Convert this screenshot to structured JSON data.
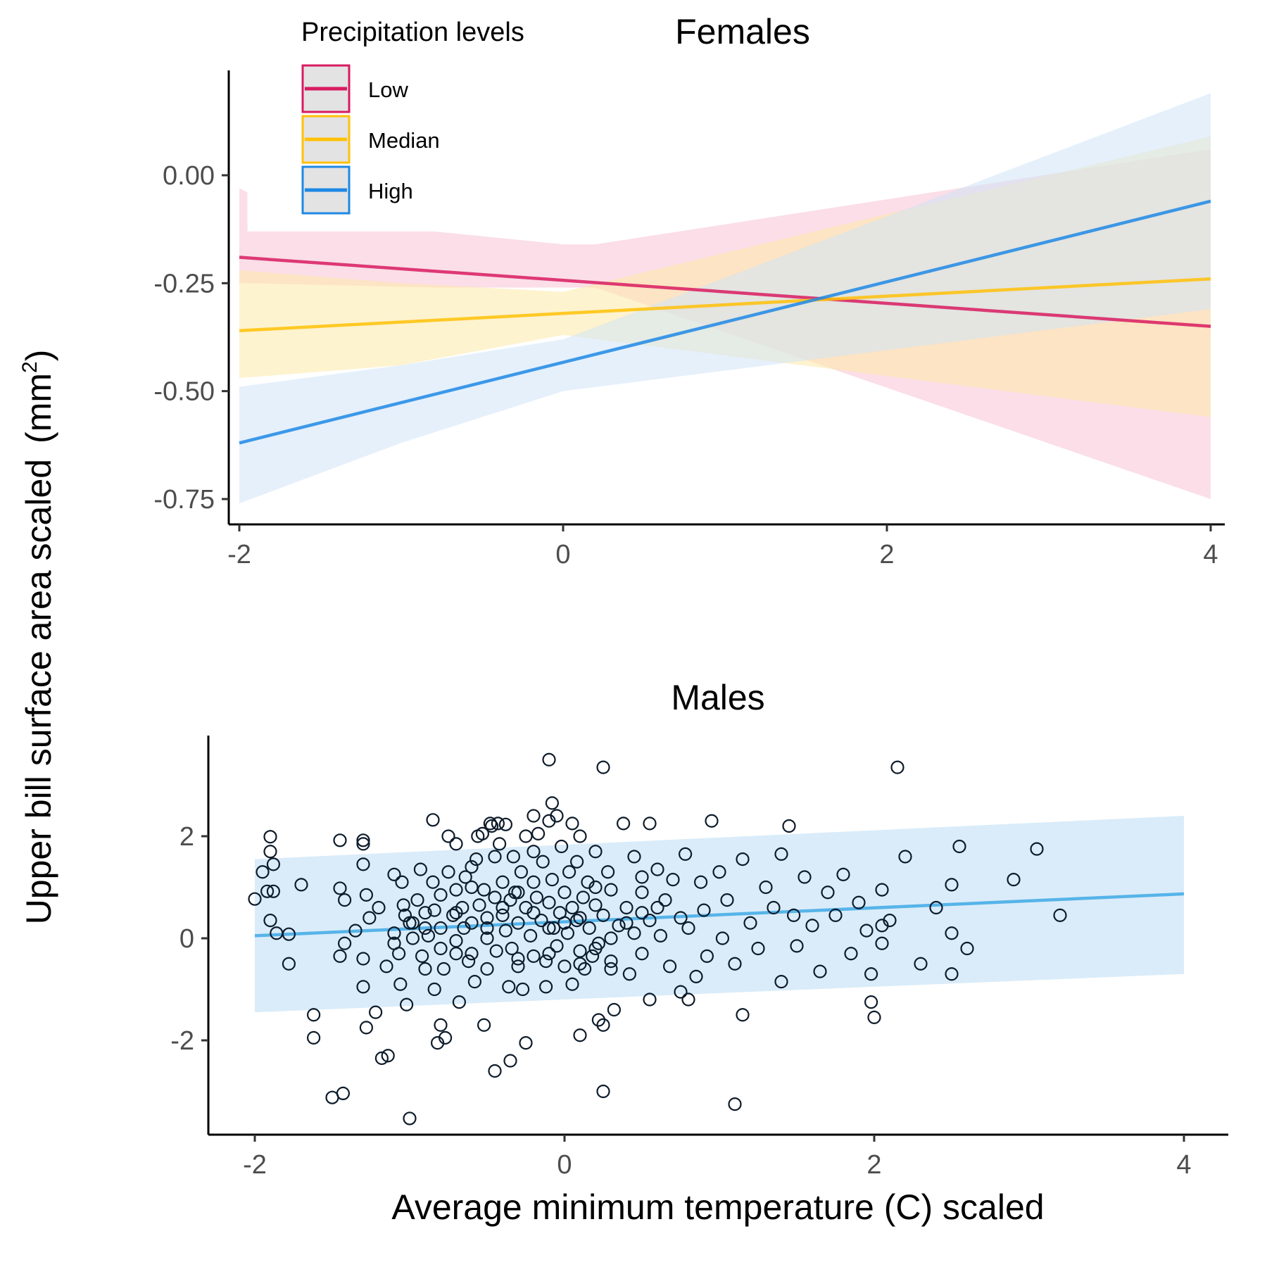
{
  "chart_data": [
    {
      "type": "line",
      "title": "Females",
      "x_range": [
        -2.3,
        4.4
      ],
      "ylim": [
        -0.81,
        0.24
      ],
      "x_ticks": [
        -2,
        0,
        2,
        4
      ],
      "y_ticks": [
        0.0,
        -0.25,
        -0.5,
        -0.75
      ],
      "x_tick_labels": [
        "-2",
        "0",
        "2",
        "4"
      ],
      "y_tick_labels": [
        "0.00",
        "-0.25",
        "-0.50",
        "-0.75"
      ],
      "grid": false,
      "legend": {
        "title": "Precipitation levels",
        "placement": "top-left",
        "entries": [
          "Low",
          "Median",
          "High"
        ]
      },
      "series": [
        {
          "name": "Low",
          "color": "#d81b60",
          "x": [
            -2,
            4
          ],
          "y": [
            -0.19,
            -0.35
          ],
          "ribbon": {
            "x": [
              -2,
              -2,
              -1.95,
              -1.95,
              -0.8,
              0,
              0.2,
              4
            ],
            "upper": [
              -0.03,
              -0.03,
              -0.04,
              -0.13,
              -0.13,
              -0.16,
              -0.16,
              0.06
            ],
            "lower": [
              -0.25,
              -0.25,
              -0.25,
              -0.25,
              -0.26,
              -0.26,
              -0.26,
              -0.75
            ],
            "color": "#f7c3d4"
          }
        },
        {
          "name": "Median",
          "color": "#ffc107",
          "x": [
            -2,
            4
          ],
          "y": [
            -0.36,
            -0.24
          ],
          "ribbon": {
            "x": [
              -2,
              -1,
              0,
              4
            ],
            "upper": [
              -0.22,
              -0.25,
              -0.27,
              0.09
            ],
            "lower": [
              -0.47,
              -0.44,
              -0.37,
              -0.56
            ],
            "color": "#fde9a8"
          }
        },
        {
          "name": "High",
          "color": "#1e88e5",
          "x": [
            -2,
            4
          ],
          "y": [
            -0.62,
            -0.06
          ],
          "ribbon": {
            "x": [
              -2,
              -1,
              0,
              4
            ],
            "upper": [
              -0.49,
              -0.44,
              -0.38,
              0.19
            ],
            "lower": [
              -0.76,
              -0.62,
              -0.5,
              -0.31
            ],
            "color": "#cfe3f7"
          }
        }
      ]
    },
    {
      "type": "scatter",
      "title": "Males",
      "x_range": [
        -2.3,
        4.3
      ],
      "ylim": [
        -3.9,
        3.9
      ],
      "x_ticks": [
        -2,
        0,
        2,
        4
      ],
      "y_ticks": [
        2,
        0,
        -2
      ],
      "x_tick_labels": [
        "-2",
        "0",
        "2",
        "4"
      ],
      "y_tick_labels": [
        "2",
        "0",
        "-2"
      ],
      "grid": false,
      "fit_line": {
        "x": [
          -2,
          4
        ],
        "y": [
          0.05,
          0.87
        ],
        "color": "#56b4e9"
      },
      "ribbon": {
        "x": [
          -2,
          4
        ],
        "upper": [
          1.55,
          2.4
        ],
        "lower": [
          -1.45,
          -0.7
        ],
        "color": "#d4e9f8"
      },
      "points": [
        [
          -1.9,
          1.99
        ],
        [
          -1.9,
          1.7
        ],
        [
          -1.88,
          1.45
        ],
        [
          -1.92,
          0.92
        ],
        [
          -1.88,
          0.92
        ],
        [
          -1.9,
          0.35
        ],
        [
          -1.95,
          1.3
        ],
        [
          -1.86,
          0.1
        ],
        [
          -1.78,
          0.08
        ],
        [
          -1.78,
          -0.5
        ],
        [
          -2.0,
          0.77
        ],
        [
          -1.7,
          1.05
        ],
        [
          -1.62,
          -1.5
        ],
        [
          -1.62,
          -1.95
        ],
        [
          -1.5,
          -3.12
        ],
        [
          -1.43,
          -3.04
        ],
        [
          -1.45,
          1.92
        ],
        [
          -1.45,
          0.98
        ],
        [
          -1.42,
          0.75
        ],
        [
          -1.45,
          -0.35
        ],
        [
          -1.42,
          -0.1
        ],
        [
          -1.35,
          0.15
        ],
        [
          -1.3,
          1.92
        ],
        [
          -1.3,
          1.85
        ],
        [
          -1.3,
          1.45
        ],
        [
          -1.28,
          0.85
        ],
        [
          -1.26,
          0.4
        ],
        [
          -1.3,
          -0.95
        ],
        [
          -1.28,
          -1.75
        ],
        [
          -1.22,
          -1.45
        ],
        [
          -1.18,
          -2.35
        ],
        [
          -1.14,
          -2.3
        ],
        [
          -1.15,
          -0.55
        ],
        [
          -1.1,
          0.1
        ],
        [
          -1.07,
          -0.3
        ],
        [
          -1.06,
          -0.9
        ],
        [
          -1.1,
          1.25
        ],
        [
          -1.05,
          1.1
        ],
        [
          -1.04,
          0.65
        ],
        [
          -1.03,
          0.45
        ],
        [
          -1.02,
          -1.3
        ],
        [
          -1.0,
          -3.53
        ],
        [
          -0.98,
          0.3
        ],
        [
          -0.98,
          0.0
        ],
        [
          -0.95,
          0.75
        ],
        [
          -0.93,
          1.35
        ],
        [
          -0.92,
          -0.35
        ],
        [
          -0.9,
          0.5
        ],
        [
          -0.88,
          0.05
        ],
        [
          -0.85,
          2.32
        ],
        [
          -0.85,
          1.1
        ],
        [
          -0.84,
          0.55
        ],
        [
          -0.84,
          -1.0
        ],
        [
          -0.82,
          -2.05
        ],
        [
          -0.8,
          0.85
        ],
        [
          -0.8,
          0.2
        ],
        [
          -0.78,
          -0.6
        ],
        [
          -0.77,
          -1.95
        ],
        [
          -0.75,
          2.0
        ],
        [
          -0.75,
          1.3
        ],
        [
          -0.72,
          0.45
        ],
        [
          -0.7,
          1.85
        ],
        [
          -0.7,
          0.95
        ],
        [
          -0.7,
          -0.05
        ],
        [
          -0.68,
          -1.25
        ],
        [
          -0.66,
          0.6
        ],
        [
          -0.65,
          0.2
        ],
        [
          -0.64,
          1.2
        ],
        [
          -0.62,
          -0.45
        ],
        [
          -0.6,
          1.0
        ],
        [
          -0.6,
          0.3
        ],
        [
          -0.58,
          -0.85
        ],
        [
          -0.57,
          1.55
        ],
        [
          -0.56,
          2.0
        ],
        [
          -0.55,
          0.65
        ],
        [
          -0.53,
          2.05
        ],
        [
          -0.52,
          0.95
        ],
        [
          -0.52,
          -1.7
        ],
        [
          -0.5,
          0.0
        ],
        [
          -0.5,
          0.4
        ],
        [
          -0.48,
          2.25
        ],
        [
          -0.47,
          2.2
        ],
        [
          -0.45,
          1.6
        ],
        [
          -0.45,
          0.8
        ],
        [
          -0.44,
          -0.25
        ],
        [
          -0.43,
          2.25
        ],
        [
          -0.42,
          1.85
        ],
        [
          -0.4,
          1.1
        ],
        [
          -0.4,
          0.45
        ],
        [
          -0.38,
          2.23
        ],
        [
          -0.38,
          0.15
        ],
        [
          -0.36,
          -0.95
        ],
        [
          -0.35,
          0.75
        ],
        [
          -0.34,
          -0.2
        ],
        [
          -0.33,
          1.6
        ],
        [
          -0.32,
          0.9
        ],
        [
          -0.3,
          0.3
        ],
        [
          -0.3,
          -0.55
        ],
        [
          -0.28,
          1.3
        ],
        [
          -0.27,
          -1.0
        ],
        [
          -0.25,
          0.6
        ],
        [
          -0.25,
          2.0
        ],
        [
          -0.22,
          0.05
        ],
        [
          -0.2,
          1.1
        ],
        [
          -0.2,
          -0.35
        ],
        [
          -0.18,
          0.8
        ],
        [
          -0.17,
          2.05
        ],
        [
          -0.15,
          0.35
        ],
        [
          -0.14,
          1.5
        ],
        [
          -0.12,
          -0.45
        ],
        [
          -0.12,
          -0.95
        ],
        [
          -0.1,
          0.7
        ],
        [
          -0.08,
          1.15
        ],
        [
          -0.07,
          0.2
        ],
        [
          -0.05,
          2.4
        ],
        [
          -0.05,
          -0.15
        ],
        [
          -0.03,
          0.5
        ],
        [
          -0.02,
          1.8
        ],
        [
          0.0,
          0.9
        ],
        [
          0.0,
          -0.55
        ],
        [
          0.02,
          0.1
        ],
        [
          0.03,
          1.3
        ],
        [
          0.05,
          0.6
        ],
        [
          0.05,
          -0.9
        ],
        [
          0.08,
          1.5
        ],
        [
          0.08,
          0.35
        ],
        [
          0.1,
          -0.25
        ],
        [
          0.1,
          2.0
        ],
        [
          0.12,
          0.8
        ],
        [
          0.13,
          -0.6
        ],
        [
          0.15,
          1.1
        ],
        [
          0.16,
          0.2
        ],
        [
          0.18,
          -0.35
        ],
        [
          0.2,
          0.65
        ],
        [
          0.2,
          1.7
        ],
        [
          0.22,
          -0.1
        ],
        [
          0.22,
          -1.6
        ],
        [
          0.25,
          0.45
        ],
        [
          0.28,
          1.3
        ],
        [
          0.3,
          -0.45
        ],
        [
          0.3,
          0.95
        ],
        [
          0.32,
          -1.4
        ],
        [
          0.35,
          0.25
        ],
        [
          0.38,
          2.25
        ],
        [
          0.4,
          0.6
        ],
        [
          0.42,
          -0.7
        ],
        [
          0.45,
          1.6
        ],
        [
          0.45,
          0.1
        ],
        [
          0.5,
          0.9
        ],
        [
          0.5,
          -0.3
        ],
        [
          0.55,
          -1.2
        ],
        [
          0.55,
          0.35
        ],
        [
          0.6,
          1.35
        ],
        [
          0.62,
          0.05
        ],
        [
          0.65,
          0.75
        ],
        [
          0.68,
          -0.55
        ],
        [
          0.7,
          1.15
        ],
        [
          0.75,
          0.4
        ],
        [
          0.75,
          -1.05
        ],
        [
          0.78,
          1.65
        ],
        [
          0.8,
          0.2
        ],
        [
          0.85,
          -0.75
        ],
        [
          0.88,
          1.1
        ],
        [
          0.9,
          0.55
        ],
        [
          0.92,
          -0.35
        ],
        [
          1.0,
          1.3
        ],
        [
          1.02,
          0.0
        ],
        [
          1.05,
          0.75
        ],
        [
          1.1,
          -0.5
        ],
        [
          1.15,
          1.55
        ],
        [
          1.2,
          0.3
        ],
        [
          1.25,
          -0.2
        ],
        [
          1.3,
          1.0
        ],
        [
          1.35,
          0.6
        ],
        [
          1.4,
          -0.85
        ],
        [
          1.45,
          2.2
        ],
        [
          1.48,
          0.45
        ],
        [
          1.5,
          -0.15
        ],
        [
          1.55,
          1.2
        ],
        [
          1.6,
          0.25
        ],
        [
          1.65,
          -0.65
        ],
        [
          1.7,
          0.9
        ],
        [
          1.75,
          0.45
        ],
        [
          1.8,
          1.25
        ],
        [
          1.85,
          -0.3
        ],
        [
          1.9,
          0.7
        ],
        [
          1.95,
          0.15
        ],
        [
          2.0,
          -1.55
        ],
        [
          2.05,
          0.95
        ],
        [
          2.1,
          0.35
        ],
        [
          2.2,
          1.6
        ],
        [
          2.3,
          -0.5
        ],
        [
          2.4,
          0.6
        ],
        [
          2.5,
          1.05
        ],
        [
          2.6,
          -0.2
        ],
        [
          -0.9,
          -0.6
        ],
        [
          -0.7,
          -0.3
        ],
        [
          -0.5,
          -0.6
        ],
        [
          -0.3,
          0.9
        ],
        [
          -0.1,
          0.2
        ],
        [
          0.1,
          0.4
        ],
        [
          0.3,
          0.0
        ],
        [
          0.5,
          0.5
        ],
        [
          -1.2,
          0.6
        ],
        [
          -1.0,
          0.3
        ],
        [
          -0.8,
          -0.2
        ],
        [
          -0.6,
          -0.3
        ],
        [
          -0.4,
          0.6
        ],
        [
          -0.2,
          0.5
        ],
        [
          0.0,
          0.3
        ],
        [
          0.2,
          -0.2
        ],
        [
          0.4,
          0.3
        ],
        [
          -1.3,
          -0.4
        ],
        [
          -1.1,
          -0.1
        ],
        [
          -0.9,
          0.2
        ],
        [
          -0.7,
          0.5
        ],
        [
          -0.5,
          0.2
        ],
        [
          -0.3,
          -0.4
        ],
        [
          -0.1,
          -0.3
        ],
        [
          0.1,
          -0.5
        ],
        [
          0.3,
          -0.6
        ],
        [
          0.6,
          0.6
        ],
        [
          -0.2,
          1.7
        ],
        [
          -0.6,
          1.4
        ],
        [
          0.2,
          1.0
        ],
        [
          0.5,
          1.2
        ],
        [
          -0.1,
          3.5
        ],
        [
          0.25,
          3.35
        ],
        [
          -0.08,
          2.65
        ],
        [
          -0.2,
          2.4
        ],
        [
          -0.1,
          2.3
        ],
        [
          0.05,
          2.25
        ],
        [
          2.15,
          3.35
        ],
        [
          0.25,
          -3.0
        ],
        [
          1.1,
          -3.25
        ],
        [
          -0.25,
          -2.05
        ],
        [
          -0.35,
          -2.4
        ],
        [
          -0.45,
          -2.6
        ],
        [
          -0.8,
          -1.7
        ],
        [
          0.1,
          -1.9
        ],
        [
          0.25,
          -1.7
        ],
        [
          0.55,
          2.25
        ],
        [
          0.95,
          2.3
        ],
        [
          1.4,
          1.65
        ],
        [
          2.55,
          1.8
        ],
        [
          3.05,
          1.75
        ],
        [
          2.9,
          1.15
        ],
        [
          3.2,
          0.45
        ],
        [
          2.5,
          0.1
        ],
        [
          2.05,
          0.25
        ],
        [
          2.05,
          -0.1
        ],
        [
          1.98,
          -0.7
        ],
        [
          1.98,
          -1.25
        ],
        [
          2.5,
          -0.7
        ],
        [
          1.15,
          -1.5
        ],
        [
          0.8,
          -1.2
        ]
      ],
      "ylabel_shared": "Upper bill surface area scaled",
      "ylabel_unit_base": "mm",
      "ylabel_unit_exp": "2",
      "xlabel": "Average minimum temperature (C) scaled"
    }
  ],
  "labels": {
    "ylabel_shared": "Upper bill surface area scaled",
    "ylabel_unit_base": "mm",
    "ylabel_unit_exp": "2",
    "xlabel": "Average minimum temperature (C) scaled"
  }
}
